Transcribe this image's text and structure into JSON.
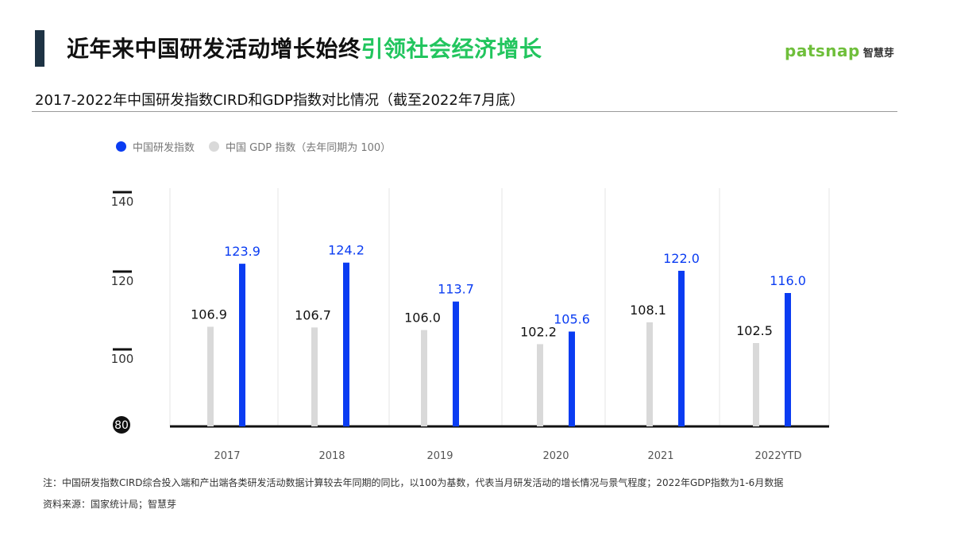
{
  "header": {
    "title_main": "近年来中国研发活动增长始终",
    "title_highlight": "引领社会经济增长",
    "logo_word": "patsnap",
    "logo_zh": "智慧芽"
  },
  "subtitle": "2017-2022年中国研发指数CIRD和GDP指数对比情况（截至2022年7月底）",
  "legend": {
    "cird": "中国研发指数",
    "gdp": "中国 GDP 指数（去年同期为 100）"
  },
  "colors": {
    "cird": "#0a3cf2",
    "gdp": "#d9d9d9",
    "highlight": "#22c55e",
    "bar_accent": "#1e3344"
  },
  "chart_data": {
    "type": "bar",
    "categories": [
      "2017",
      "2018",
      "2019",
      "2020",
      "2021",
      "2022YTD"
    ],
    "series": [
      {
        "name": "中国 GDP 指数（去年同期为 100）",
        "values": [
          106.9,
          106.7,
          106.0,
          102.2,
          108.1,
          102.5
        ]
      },
      {
        "name": "中国研发指数",
        "values": [
          123.9,
          124.2,
          113.7,
          105.6,
          122.0,
          116.0
        ]
      }
    ],
    "value_labels": {
      "gdp": [
        "106.9",
        "106.7",
        "106.0",
        "102.2",
        "108.1",
        "102.5"
      ],
      "cird": [
        "123.9",
        "124.2",
        "113.7",
        "105.6",
        "122.0",
        "116.0"
      ]
    },
    "yticks": [
      "140",
      "120",
      "100",
      "80"
    ],
    "ylim": [
      80,
      140
    ],
    "grid": "vertical-separators",
    "legend_position": "top-left"
  },
  "footer": {
    "note": "注：中国研发指数CIRD综合投入端和产出端各类研发活动数据计算较去年同期的同比，以100为基数，代表当月研发活动的增长情况与景气程度；2022年GDP指数为1-6月数据",
    "source": "资料来源：国家统计局；智慧芽"
  }
}
